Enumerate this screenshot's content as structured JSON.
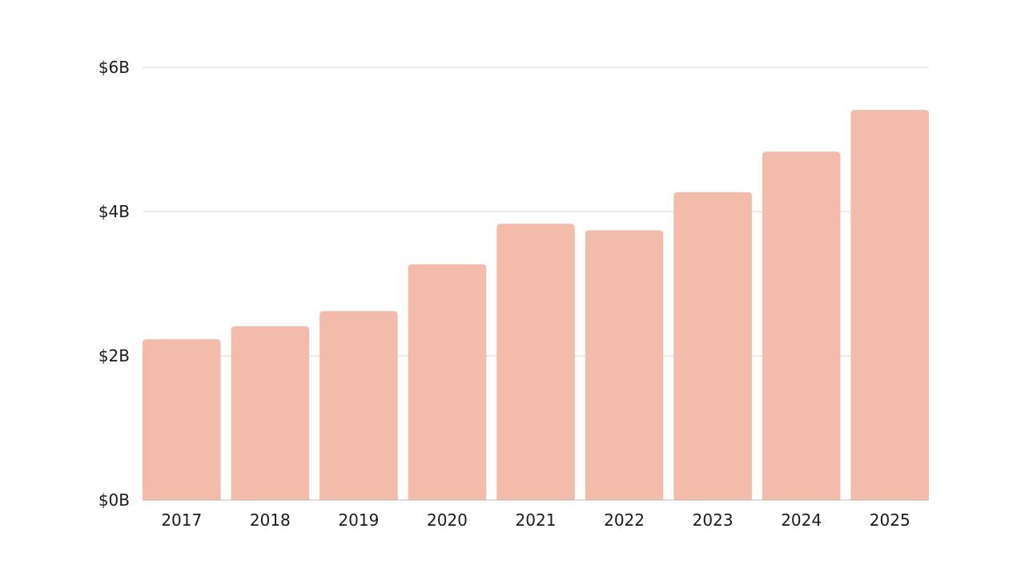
{
  "chart_data": {
    "type": "bar",
    "categories": [
      "2017",
      "2018",
      "2019",
      "2020",
      "2021",
      "2022",
      "2023",
      "2024",
      "2025"
    ],
    "values": [
      2.23,
      2.41,
      2.62,
      3.27,
      3.83,
      3.74,
      4.27,
      4.83,
      5.41
    ],
    "title": "",
    "xlabel": "",
    "ylabel": "",
    "ylim": [
      0,
      6
    ],
    "y_ticks": [
      {
        "value": 0,
        "label": "$0B"
      },
      {
        "value": 2,
        "label": "$2B"
      },
      {
        "value": 4,
        "label": "$4B"
      },
      {
        "value": 6,
        "label": "$6B"
      }
    ],
    "grid": true,
    "legend": "none",
    "bar_color": "#f2bbaa"
  }
}
